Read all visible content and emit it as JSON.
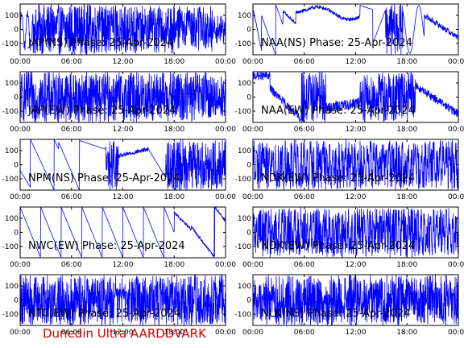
{
  "footer": "Dunedin Ultra AARDDVARK",
  "colors": {
    "trace": "#0000ff",
    "axes": "#000000",
    "footer": "#d00000"
  },
  "chart_data": [
    {
      "type": "line",
      "title": "JAP(NS) Phase: 25-Apr-2024",
      "xticks": [
        "00:00",
        "06:00",
        "12:00",
        "18:00",
        "00:00"
      ],
      "yticks": [
        "100",
        "0",
        "-100"
      ],
      "ylim": [
        -180,
        180
      ],
      "xlim": [
        0,
        24
      ],
      "pattern": "jap_ns"
    },
    {
      "type": "line",
      "title": "NAA(NS) Phase: 25-Apr-2024",
      "xticks": [
        "00:00",
        "06:00",
        "12:00",
        "18:00",
        "00:00"
      ],
      "yticks": [
        "100",
        "0",
        "-100"
      ],
      "ylim": [
        -180,
        180
      ],
      "xlim": [
        0,
        24
      ],
      "pattern": "naa_ns"
    },
    {
      "type": "line",
      "title": "JAP(EW) Phase: 25-Apr-2024",
      "xticks": [
        "00:00",
        "06:00",
        "12:00",
        "18:00",
        "00:00"
      ],
      "yticks": [
        "100",
        "0",
        "-100"
      ],
      "ylim": [
        -180,
        180
      ],
      "xlim": [
        0,
        24
      ],
      "pattern": "jap_ew"
    },
    {
      "type": "line",
      "title": "NAA(EW) Phase: 25-Apr-2024",
      "xticks": [
        "00:00",
        "06:00",
        "12:00",
        "18:00",
        "00:00"
      ],
      "yticks": [
        "100",
        "0",
        "-100"
      ],
      "ylim": [
        -180,
        180
      ],
      "xlim": [
        0,
        24
      ],
      "pattern": "naa_ew"
    },
    {
      "type": "line",
      "title": "NPM(NS) Phase: 25-Apr-2024",
      "xticks": [
        "00:00",
        "06:00",
        "12:00",
        "18:00",
        "00:00"
      ],
      "yticks": [
        "100",
        "0",
        "-100"
      ],
      "ylim": [
        -180,
        180
      ],
      "xlim": [
        0,
        24
      ],
      "pattern": "npm_ns"
    },
    {
      "type": "line",
      "title": "NDK(EW) Phase: 25-Apr-2024",
      "xticks": [
        "00:00",
        "06:00",
        "12:00",
        "18:00",
        "00:00"
      ],
      "yticks": [
        "100",
        "0",
        "-100"
      ],
      "ylim": [
        -180,
        180
      ],
      "xlim": [
        0,
        24
      ],
      "pattern": "ndk_ew_a"
    },
    {
      "type": "line",
      "title": "NWC(EW) Phase: 25-Apr-2024",
      "xticks": [
        "00:00",
        "06:00",
        "12:00",
        "18:00",
        "00:00"
      ],
      "yticks": [
        "100",
        "0",
        "-100"
      ],
      "ylim": [
        -180,
        180
      ],
      "xlim": [
        0,
        24
      ],
      "pattern": "nwc_ew"
    },
    {
      "type": "line",
      "title": "NDK(EW) Phase: 25-Apr-2024",
      "xticks": [
        "00:00",
        "06:00",
        "12:00",
        "18:00",
        "00:00"
      ],
      "yticks": [
        "100",
        "0",
        "-100"
      ],
      "ylim": [
        -180,
        180
      ],
      "xlim": [
        0,
        24
      ],
      "pattern": "ndk_ew_b"
    },
    {
      "type": "line",
      "title": "NTC(EW) Phase: 25-Apr-2024",
      "xticks": [
        "00:00",
        "06:00",
        "12:00",
        "18:00",
        "00:00"
      ],
      "yticks": [
        "100",
        "0",
        "-100"
      ],
      "ylim": [
        -180,
        180
      ],
      "xlim": [
        0,
        24
      ],
      "pattern": "ntc_ew"
    },
    {
      "type": "line",
      "title": "NLK(NS) Phase: 25-Apr-2024",
      "xticks": [
        "00:00",
        "06:00",
        "12:00",
        "18:00",
        "00:00"
      ],
      "yticks": [
        "100",
        "0",
        "-100"
      ],
      "ylim": [
        -180,
        180
      ],
      "xlim": [
        0,
        24
      ],
      "pattern": "nlk_ns"
    }
  ]
}
